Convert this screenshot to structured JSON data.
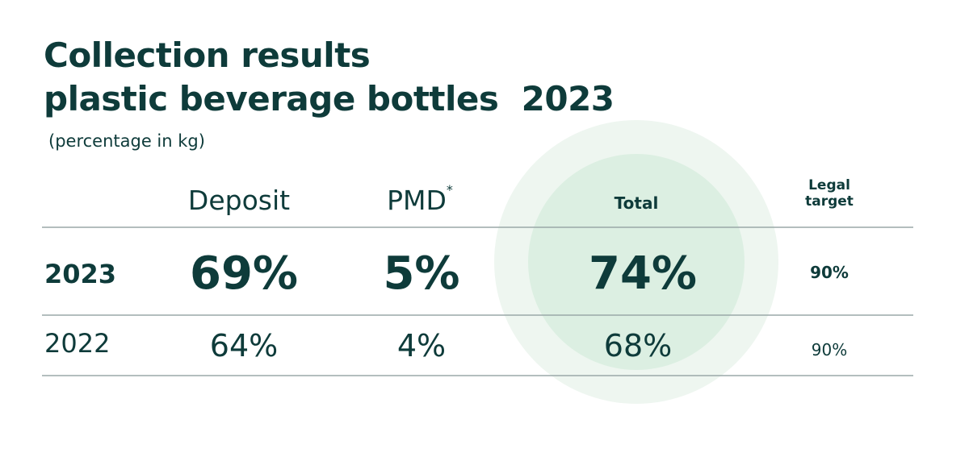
{
  "title": [
    "Collection results",
    "plastic beverage bottles  2023"
  ],
  "subtitle": "(percentage in kg)",
  "table": {
    "header": [
      "Deposit",
      "PMD",
      "Total",
      "Legal target"
    ],
    "header_note": "*",
    "rows": [
      [
        "2023",
        "69%",
        "5%",
        "74%",
        "90%"
      ],
      [
        "2022",
        "64%",
        "4%",
        "68%",
        "90%"
      ]
    ]
  }
}
